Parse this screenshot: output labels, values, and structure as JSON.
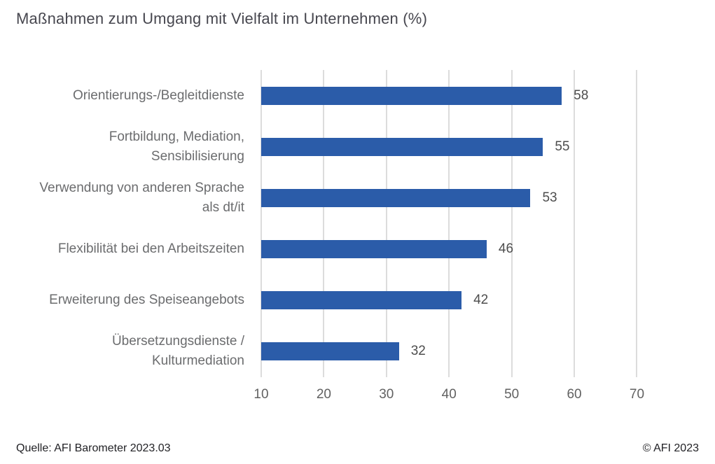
{
  "title": "Maßnahmen zum Umgang mit Vielfalt im Unternehmen (%)",
  "footer": {
    "source": "Quelle: AFI Barometer 2023.03",
    "copyright": "© AFI 2023"
  },
  "colors": {
    "bar": "#2b5ca9",
    "grid": "#dcdcdc",
    "title_text": "#47474f",
    "category_text": "#6b6c6e",
    "value_text": "#4d4d4d",
    "tick_text": "#616161",
    "footer_text": "#222226",
    "background": "#ffffff"
  },
  "chart_data": {
    "type": "bar",
    "orientation": "horizontal",
    "title": "Maßnahmen zum Umgang mit Vielfalt im Unternehmen (%)",
    "categories": [
      "Orientierungs-/Begleitdienste",
      "Fortbildung, Mediation, Sensibilisierung",
      "Verwendung von anderen Sprache als dt/it",
      "Flexibilität bei den Arbeitszeiten",
      "Erweiterung des Speiseangebots",
      "Übersetzungsdienste / Kulturmediation"
    ],
    "category_lines": [
      [
        "Orientierungs-/Begleitdienste"
      ],
      [
        "Fortbildung, Mediation,",
        "Sensibilisierung"
      ],
      [
        "Verwendung von anderen Sprache",
        "als dt/it"
      ],
      [
        "Flexibilität bei den Arbeitszeiten"
      ],
      [
        "Erweiterung des Speiseangebots"
      ],
      [
        "Übersetzungsdienste /",
        "Kulturmediation"
      ]
    ],
    "values": [
      58,
      55,
      53,
      46,
      42,
      32
    ],
    "xlabel": "",
    "ylabel": "",
    "xlim": [
      10,
      78
    ],
    "xticks": [
      10,
      20,
      30,
      40,
      50,
      60,
      70
    ],
    "grid": true,
    "legend": false,
    "value_labels": true,
    "source": "Quelle: AFI Barometer 2023.03",
    "copyright": "© AFI 2023"
  }
}
